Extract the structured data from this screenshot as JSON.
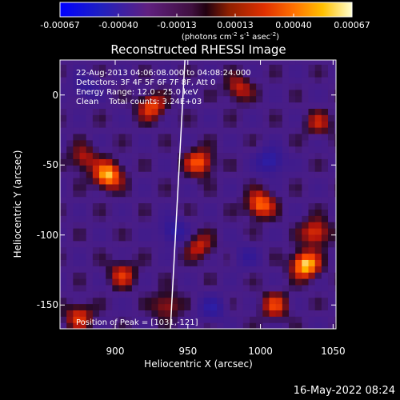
{
  "chart_data": {
    "type": "heatmap",
    "title": "Reconstructed RHESSI Image",
    "xlabel": "Heliocentric X (arcsec)",
    "ylabel": "Heliocentric Y (arcsec)",
    "xlim": [
      862,
      1052
    ],
    "ylim": [
      -167,
      25
    ],
    "x_ticks": [
      900,
      950,
      1000,
      1050
    ],
    "y_ticks": [
      0,
      -50,
      -100,
      -150
    ],
    "colorbar": {
      "ticks": [
        "-0.00067",
        "-0.00040",
        "-0.00013",
        "0.00013",
        "0.00040",
        "0.00067"
      ],
      "range": [
        -0.00067,
        0.00067
      ],
      "units": "(photons cm",
      "units_sup1": "-2",
      "units_mid1": " s",
      "units_sup2": "-1",
      "units_mid2": " asec",
      "units_sup3": "-2",
      "units_end": ")"
    },
    "annotations": {
      "line1": "22-Aug-2013 04:06:08.000 to 04:08:24.000",
      "line2": "Detectors: 3F 4F 5F 6F 7F 8F, Att 0",
      "line3": "Energy Range: 12.0 - 25.0 keV",
      "line4": "Clean    Total counts: 3.24E+03",
      "peak": "Position of Peak = [1031,-121]"
    },
    "limb_line": [
      [
        938,
        -167
      ],
      [
        948,
        25
      ]
    ],
    "hot_spots": [
      {
        "x": 1031,
        "y": -121,
        "value": 0.00067
      },
      {
        "x": 895,
        "y": -57,
        "value": 0.00062
      },
      {
        "x": 1000,
        "y": -78,
        "value": 0.0005
      },
      {
        "x": 958,
        "y": -48,
        "value": 0.00045
      },
      {
        "x": 925,
        "y": -8,
        "value": 0.0004
      },
      {
        "x": 985,
        "y": 5,
        "value": 0.0003
      },
      {
        "x": 1038,
        "y": -98,
        "value": 0.0004
      },
      {
        "x": 1010,
        "y": -150,
        "value": 0.00035
      },
      {
        "x": 905,
        "y": -128,
        "value": 0.00032
      },
      {
        "x": 875,
        "y": -158,
        "value": 0.00035
      },
      {
        "x": 878,
        "y": -45,
        "value": 0.00028
      },
      {
        "x": 958,
        "y": -108,
        "value": 0.0003
      },
      {
        "x": 1040,
        "y": -20,
        "value": 0.00025
      },
      {
        "x": 935,
        "y": -150,
        "value": 0.00028
      }
    ],
    "cold_spots": [
      {
        "x": 1007,
        "y": -47,
        "value": -0.0004
      },
      {
        "x": 940,
        "y": -97,
        "value": -0.00035
      },
      {
        "x": 967,
        "y": -152,
        "value": -0.0003
      },
      {
        "x": 880,
        "y": 5,
        "value": -0.00025
      },
      {
        "x": 990,
        "y": -115,
        "value": -0.0002
      }
    ]
  },
  "footer": {
    "date": "16-May-2022 08:24"
  }
}
